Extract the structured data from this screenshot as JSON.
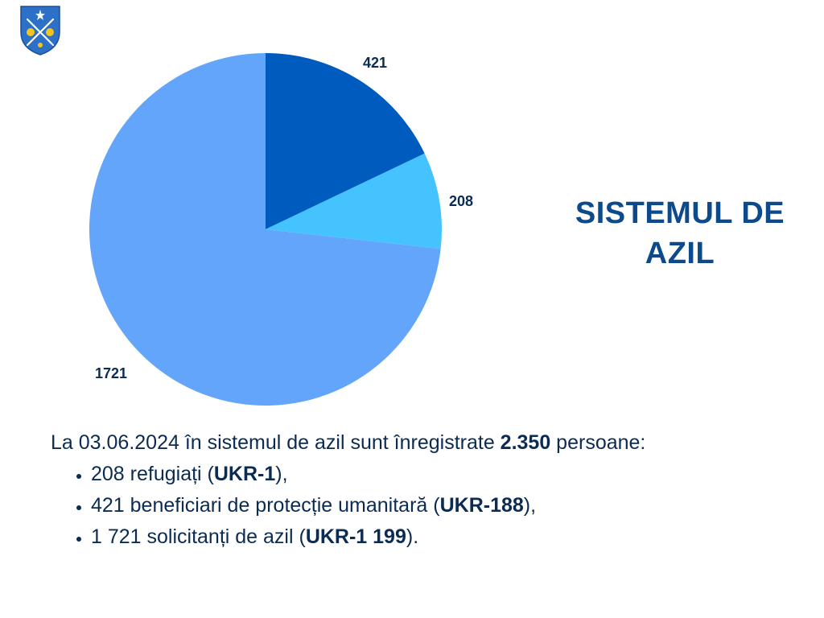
{
  "colors": {
    "slice_421": "#005bbf",
    "slice_208": "#45c3ff",
    "slice_1721": "#63a5fb",
    "title": "#0d4a8c",
    "text": "#0b2b52",
    "logo_shield": "#2d70c8",
    "logo_accent": "#f3c51d"
  },
  "logo": {
    "icon": "coat-of-arms-icon"
  },
  "chart_data": {
    "type": "pie",
    "title": "SISTEMUL DE AZIL",
    "slices": [
      {
        "label": "421",
        "value": 421
      },
      {
        "label": "208",
        "value": 208
      },
      {
        "label": "1721",
        "value": 1721
      }
    ]
  },
  "info": {
    "intro_pre": "La 03.06.2024 în sistemul de azil sunt înregistrate ",
    "intro_bold": "2.350",
    "intro_post": " persoane:",
    "items": [
      {
        "pre": "208 refugiați (",
        "bold": "UKR-1",
        "post": "),"
      },
      {
        "pre": "421 beneficiari de protecție umanitară (",
        "bold": "UKR-188",
        "post": "),"
      },
      {
        "pre": "1 721 solicitanți de azil (",
        "bold": "UKR-1 199",
        "post": ")."
      }
    ]
  }
}
